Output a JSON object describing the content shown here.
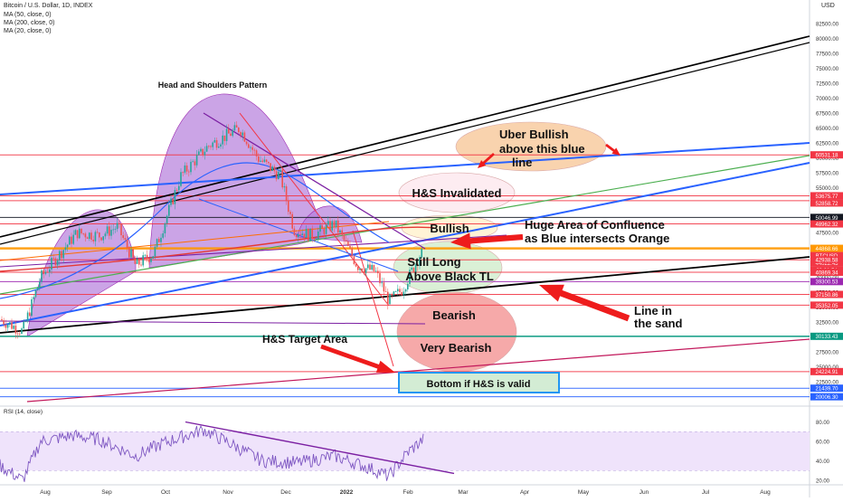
{
  "header": {
    "title": "Bitcoin / U.S. Dollar, 1D, INDEX",
    "indicators": [
      "MA (50, close, 0)",
      "MA (200, close, 0)",
      "MA (20, close, 0)"
    ],
    "currency": "USD"
  },
  "chart_data": [
    {
      "type": "line",
      "symbol": "BTCUSD",
      "y_axis_ticks": [
        82500,
        80000,
        77500,
        75000,
        72500,
        70000,
        67500,
        65000,
        62500,
        60000,
        57500,
        55000,
        52500,
        50000,
        47500,
        45000,
        42500,
        40000,
        37500,
        35000,
        32500,
        30000,
        27500,
        25000,
        22500
      ],
      "x_axis_ticks": [
        "Aug",
        "Sep",
        "Oct",
        "Nov",
        "Dec",
        "2022",
        "Feb",
        "Mar",
        "Apr",
        "May",
        "Jun",
        "Jul",
        "Aug"
      ],
      "ylim": [
        18500,
        85000
      ],
      "price_labels": [
        {
          "value": "60531.18",
          "color": "#f23645"
        },
        {
          "value": "53675.77",
          "color": "#f23645"
        },
        {
          "value": "52858.72",
          "color": "#f23645"
        },
        {
          "value": "50046.99",
          "color": "#131722"
        },
        {
          "value": "48962.32",
          "color": "#f23645"
        },
        {
          "value": "44868.66",
          "color": "#ff9800"
        },
        {
          "value": "BTCUSD",
          "color": "#f23645"
        },
        {
          "value": "44022.43",
          "color": "#f23645"
        },
        {
          "value": "03:21:54",
          "color": "#f23645"
        },
        {
          "value": "42938.58",
          "color": "#f23645"
        },
        {
          "value": "40869.34",
          "color": "#f23645"
        },
        {
          "value": "39300.53",
          "color": "#9c27b0"
        },
        {
          "value": "37150.86",
          "color": "#f23645"
        },
        {
          "value": "35352.05",
          "color": "#f23645"
        },
        {
          "value": "30133.43",
          "color": "#089981"
        },
        {
          "value": "24224.91",
          "color": "#f23645"
        },
        {
          "value": "21439.70",
          "color": "#2962ff"
        },
        {
          "value": "20006.30",
          "color": "#2962ff"
        }
      ],
      "annotations": {
        "head_and_shoulders": "Head and Shoulders Pattern",
        "uber_bullish": [
          "Uber Bullish",
          "above this blue",
          "line"
        ],
        "hs_invalidated": "H&S Invalidated",
        "bullish": "Bullish",
        "confluence": [
          "Huge Area of Confluence",
          "as Blue intersects Orange"
        ],
        "still_long": [
          "Still Long",
          "Above Black TL"
        ],
        "line_in_sand": [
          "Line in",
          "the sand"
        ],
        "bearish": "Bearish",
        "very_bearish": "Very Bearish",
        "hs_target": "H&S Target Area",
        "bottom": "Bottom if H&S is valid"
      }
    },
    {
      "type": "line",
      "title": "RSI (14, close)",
      "y_axis_ticks": [
        80,
        60,
        40,
        20
      ],
      "ylim": [
        15,
        90
      ],
      "band": [
        30,
        70
      ]
    }
  ],
  "colors": {
    "bull_candle": "#26a69a",
    "bear_candle": "#ef5350",
    "resistance": "#f23645",
    "trendline_blue": "#2962ff",
    "trendline_black": "#000000",
    "trendline_green": "#4caf50",
    "orange_level": "#ff9800",
    "pattern_fill": "#b57edc",
    "rsi_line": "#7e57c2"
  }
}
